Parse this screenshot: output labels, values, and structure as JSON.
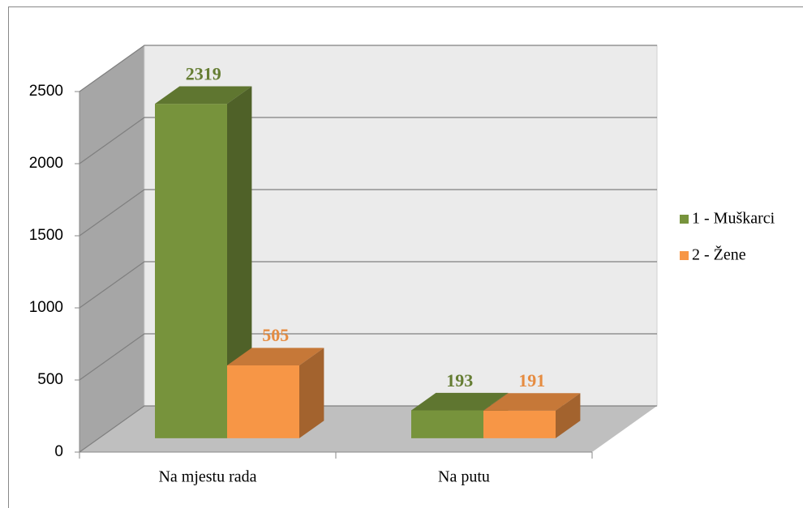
{
  "chart_data": {
    "type": "bar3d",
    "categories": [
      "Na mjestu rada",
      "Na putu"
    ],
    "series": [
      {
        "name": "1 - Muškarci",
        "color": "#77933c",
        "values": [
          2319,
          193
        ]
      },
      {
        "name": "2 - Žene",
        "color": "#f79646",
        "values": [
          505,
          191
        ]
      }
    ],
    "ylim": [
      0,
      2500
    ],
    "yticks": [
      0,
      500,
      1000,
      1500,
      2000,
      2500
    ],
    "grid": true,
    "legend": "right"
  }
}
